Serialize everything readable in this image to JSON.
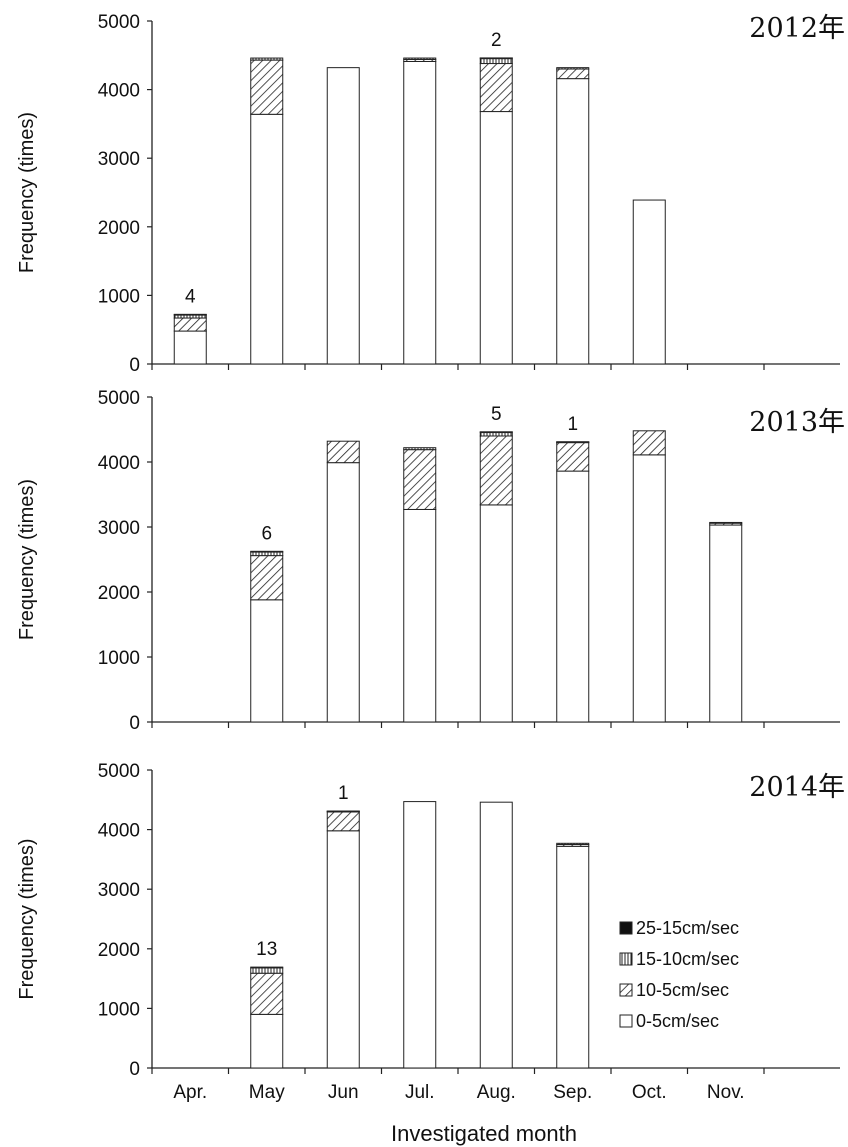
{
  "chart_data": {
    "type": "bar",
    "stacked": true,
    "months": [
      "Apr.",
      "May",
      "Jun",
      "Jul.",
      "Aug.",
      "Sep.",
      "Oct.",
      "Nov."
    ],
    "xlabel": "Investigated month",
    "ylabel": "Frequency (times)",
    "ylim": [
      0,
      5000
    ],
    "yticks": [
      "0",
      "1000",
      "2000",
      "3000",
      "4000",
      "5000"
    ],
    "legend": {
      "position": "inside bottom-right of last panel",
      "entries": [
        "25-15cm/sec",
        "15-10cm/sec",
        "10-5cm/sec",
        "0-5cm/sec"
      ]
    },
    "series_names": [
      "0-5cm/sec",
      "10-5cm/sec",
      "15-10cm/sec",
      "25-15cm/sec"
    ],
    "panels": [
      {
        "year_label": "2012年",
        "values": {
          "0-5cm/sec": [
            480,
            3640,
            4320,
            4410,
            3680,
            4160,
            2390,
            0
          ],
          "10-5cm/sec": [
            190,
            790,
            0,
            30,
            700,
            140,
            0,
            0
          ],
          "15-10cm/sec": [
            50,
            30,
            0,
            20,
            80,
            20,
            0,
            0
          ],
          "25-15cm/sec": [
            4,
            0,
            0,
            0,
            2,
            0,
            0,
            0
          ]
        },
        "annotations": [
          {
            "month": "Apr.",
            "text": "4"
          },
          {
            "month": "Aug.",
            "text": "2"
          }
        ]
      },
      {
        "year_label": "2013年",
        "values": {
          "0-5cm/sec": [
            0,
            1880,
            3990,
            3270,
            3340,
            3860,
            4110,
            3030
          ],
          "10-5cm/sec": [
            0,
            680,
            330,
            920,
            1060,
            440,
            370,
            30
          ],
          "15-10cm/sec": [
            0,
            60,
            0,
            30,
            60,
            10,
            0,
            10
          ],
          "25-15cm/sec": [
            0,
            6,
            0,
            0,
            5,
            1,
            0,
            0
          ]
        },
        "annotations": [
          {
            "month": "May",
            "text": "6"
          },
          {
            "month": "Aug.",
            "text": "5"
          },
          {
            "month": "Sep.",
            "text": "1"
          }
        ]
      },
      {
        "year_label": "2014年",
        "values": {
          "0-5cm/sec": [
            0,
            900,
            3980,
            4470,
            4460,
            3720,
            0,
            0
          ],
          "10-5cm/sec": [
            0,
            690,
            320,
            0,
            0,
            30,
            0,
            0
          ],
          "15-10cm/sec": [
            0,
            90,
            10,
            0,
            0,
            20,
            0,
            0
          ],
          "25-15cm/sec": [
            0,
            13,
            1,
            0,
            0,
            0,
            0,
            0
          ]
        },
        "annotations": [
          {
            "month": "May",
            "text": "13"
          },
          {
            "month": "Jun",
            "text": "1"
          }
        ]
      }
    ]
  }
}
